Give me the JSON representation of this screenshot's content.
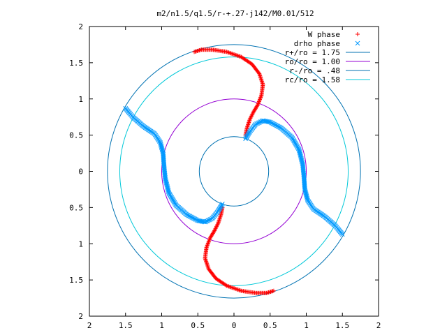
{
  "chart_data": {
    "type": "scatter",
    "title": "m2/n1.5/q1.5/r-+.27-j142/M0.01/512",
    "xlabel": "",
    "ylabel": "",
    "xlim": [
      -2,
      2
    ],
    "ylim": [
      -2,
      2
    ],
    "x_ticks": [
      {
        "value": -2,
        "label": "2"
      },
      {
        "value": -1.5,
        "label": "1.5"
      },
      {
        "value": -1,
        "label": "1"
      },
      {
        "value": -0.5,
        "label": "0.5"
      },
      {
        "value": 0,
        "label": "0"
      },
      {
        "value": 0.5,
        "label": "0.5"
      },
      {
        "value": 1,
        "label": "1"
      },
      {
        "value": 1.5,
        "label": "1.5"
      },
      {
        "value": 2,
        "label": "2"
      }
    ],
    "y_ticks": [
      {
        "value": 2,
        "label": "2"
      },
      {
        "value": 1.5,
        "label": "1.5"
      },
      {
        "value": 1,
        "label": "1"
      },
      {
        "value": 0.5,
        "label": "0.5"
      },
      {
        "value": 0,
        "label": "0"
      },
      {
        "value": -0.5,
        "label": "0.5"
      },
      {
        "value": -1,
        "label": "1"
      },
      {
        "value": -1.5,
        "label": "1.5"
      },
      {
        "value": -2,
        "label": "2"
      }
    ],
    "grid": false,
    "legend_position": "top-right",
    "circles": [
      {
        "name": "r+/ro = 1.75",
        "radius": 1.75,
        "color": "#0072b2"
      },
      {
        "name": "ro/ro = 1.00",
        "radius": 1.0,
        "color": "#9400d3"
      },
      {
        "name": "r-/ro = .48",
        "radius": 0.48,
        "color": "#0072b2"
      },
      {
        "name": "rc/ro = 1.58",
        "radius": 1.58,
        "color": "#00c8d8"
      }
    ],
    "series": [
      {
        "name": "W phase",
        "marker": "plus",
        "color": "#ff0000",
        "curves": [
          [
            [
              -0.55,
              1.65
            ],
            [
              -0.45,
              1.68
            ],
            [
              -0.3,
              1.68
            ],
            [
              -0.1,
              1.65
            ],
            [
              0.1,
              1.58
            ],
            [
              0.25,
              1.48
            ],
            [
              0.35,
              1.35
            ],
            [
              0.4,
              1.2
            ],
            [
              0.38,
              1.05
            ],
            [
              0.33,
              0.92
            ],
            [
              0.27,
              0.82
            ],
            [
              0.22,
              0.72
            ],
            [
              0.18,
              0.6
            ],
            [
              0.16,
              0.5
            ]
          ],
          [
            [
              0.55,
              -1.65
            ],
            [
              0.45,
              -1.68
            ],
            [
              0.3,
              -1.68
            ],
            [
              0.1,
              -1.65
            ],
            [
              -0.1,
              -1.58
            ],
            [
              -0.25,
              -1.48
            ],
            [
              -0.35,
              -1.35
            ],
            [
              -0.4,
              -1.2
            ],
            [
              -0.38,
              -1.05
            ],
            [
              -0.33,
              -0.92
            ],
            [
              -0.27,
              -0.82
            ],
            [
              -0.22,
              -0.72
            ],
            [
              -0.18,
              -0.6
            ],
            [
              -0.16,
              -0.5
            ]
          ]
        ]
      },
      {
        "name": "drho phase",
        "marker": "cross",
        "color": "#0099ff",
        "curves": [
          [
            [
              -1.5,
              0.87
            ],
            [
              -1.4,
              0.75
            ],
            [
              -1.25,
              0.62
            ],
            [
              -1.1,
              0.52
            ],
            [
              -1.02,
              0.4
            ],
            [
              -0.98,
              0.25
            ],
            [
              -0.97,
              0.1
            ],
            [
              -0.95,
              -0.1
            ],
            [
              -0.9,
              -0.3
            ],
            [
              -0.8,
              -0.47
            ],
            [
              -0.65,
              -0.6
            ],
            [
              -0.5,
              -0.68
            ],
            [
              -0.4,
              -0.7
            ],
            [
              -0.3,
              -0.65
            ],
            [
              -0.22,
              -0.55
            ],
            [
              -0.16,
              -0.45
            ]
          ],
          [
            [
              1.5,
              -0.87
            ],
            [
              1.4,
              -0.75
            ],
            [
              1.25,
              -0.62
            ],
            [
              1.1,
              -0.52
            ],
            [
              1.02,
              -0.4
            ],
            [
              0.98,
              -0.25
            ],
            [
              0.97,
              -0.1
            ],
            [
              0.95,
              0.1
            ],
            [
              0.9,
              0.3
            ],
            [
              0.8,
              0.47
            ],
            [
              0.65,
              0.6
            ],
            [
              0.5,
              0.68
            ],
            [
              0.4,
              0.7
            ],
            [
              0.3,
              0.65
            ],
            [
              0.22,
              0.55
            ],
            [
              0.16,
              0.45
            ]
          ]
        ]
      }
    ]
  }
}
